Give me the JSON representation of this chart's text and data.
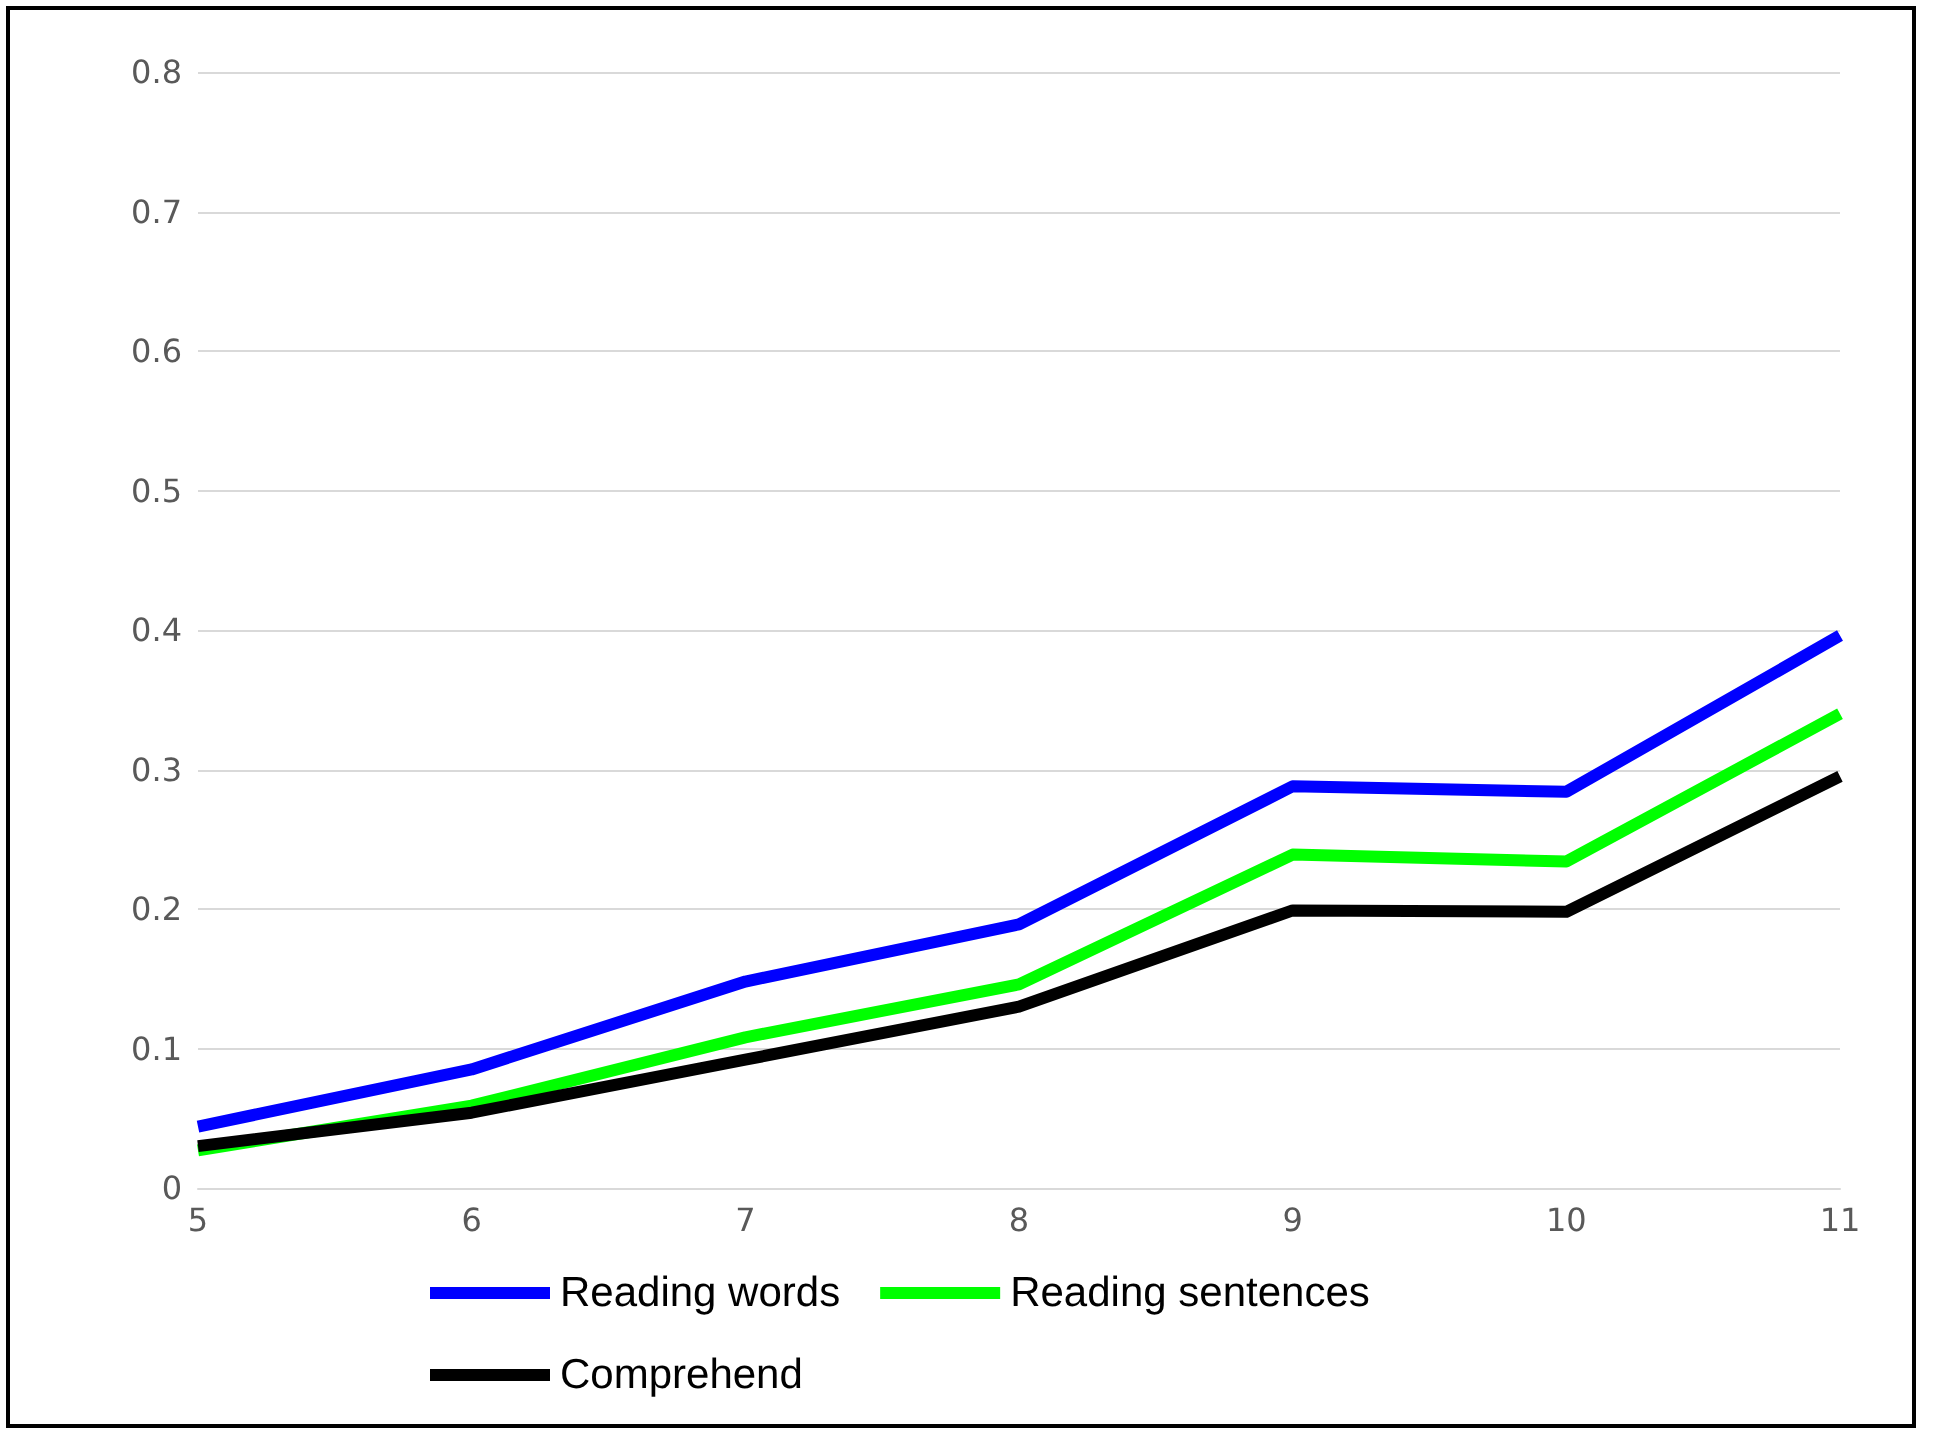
{
  "chart_data": {
    "type": "line",
    "categories": [
      "5",
      "6",
      "7",
      "8",
      "9",
      "10",
      "11"
    ],
    "series": [
      {
        "name": "Reading words",
        "color": "#0000ff",
        "values": [
          0.044,
          0.085,
          0.148,
          0.189,
          0.288,
          0.284,
          0.396
        ]
      },
      {
        "name": "Reading sentences",
        "color": "#00ff00",
        "values": [
          0.027,
          0.059,
          0.108,
          0.146,
          0.239,
          0.234,
          0.34
        ]
      },
      {
        "name": "Comprehend",
        "color": "#000000",
        "values": [
          0.03,
          0.054,
          0.092,
          0.13,
          0.199,
          0.198,
          0.295
        ]
      }
    ],
    "ylim": [
      0,
      0.8
    ],
    "yticks": [
      0,
      0.1,
      0.2,
      0.3,
      0.4,
      0.5,
      0.6,
      0.7,
      0.8
    ],
    "grid": "y",
    "legend": "bottom",
    "marker": "none",
    "line_style": "solid"
  }
}
